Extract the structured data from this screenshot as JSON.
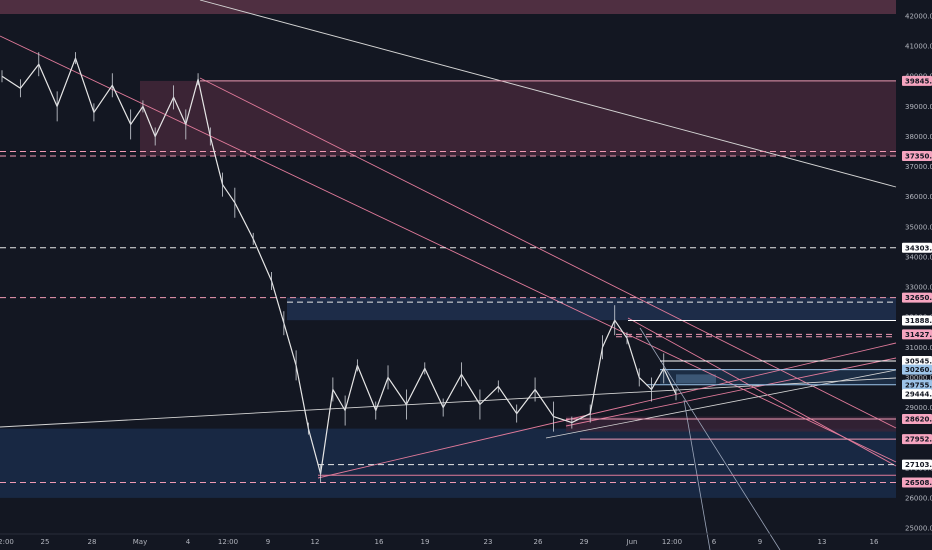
{
  "chart_data": {
    "type": "candlestick",
    "title": "",
    "xlabel": "",
    "ylabel": "",
    "ylim": [
      24800,
      42300
    ],
    "x_tick_labels": [
      "2:00",
      "25",
      "28",
      "May",
      "4",
      "12:00",
      "9",
      "12",
      "16",
      "19",
      "23",
      "26",
      "29",
      "Jun",
      "12:00",
      "6",
      "9",
      "13",
      "16"
    ],
    "y_tick_labels": [
      "25000.0",
      "26000.0",
      "27000.0",
      "28000.0",
      "29000.0",
      "30000.0",
      "31000.0",
      "32000.0",
      "33000.0",
      "34000.0",
      "35000.0",
      "36000.0",
      "37000.0",
      "38000.0",
      "39000.0",
      "40000.0",
      "41000.0",
      "42000.0"
    ],
    "price_tags": [
      {
        "label": "39845.0",
        "value": 39845,
        "color": "#f6a5c0"
      },
      {
        "label": "37350.0",
        "value": 37350,
        "color": "#f6a5c0"
      },
      {
        "label": "34303.7",
        "value": 34303.7,
        "color": "#ffffff"
      },
      {
        "label": "32650.0",
        "value": 32650,
        "color": "#f6a5c0"
      },
      {
        "label": "31888.0",
        "value": 31888,
        "color": "#ffffff"
      },
      {
        "label": "31427.5",
        "value": 31427.5,
        "color": "#f6a5c0"
      },
      {
        "label": "30545.1",
        "value": 30545.1,
        "color": "#ffffff"
      },
      {
        "label": "30260.0",
        "value": 30260,
        "color": "#9cc3e8"
      },
      {
        "label": "29755.0",
        "value": 29755,
        "color": "#9cc3e8"
      },
      {
        "label": "29444.2",
        "value": 29444.2,
        "color": "#ffffff"
      },
      {
        "label": "28620.0",
        "value": 28620,
        "color": "#f6a5c0"
      },
      {
        "label": "27952.1",
        "value": 27952.1,
        "color": "#f6a5c0"
      },
      {
        "label": "27103.1",
        "value": 27103.1,
        "color": "#ffffff"
      },
      {
        "label": "26508.9",
        "value": 26508.9,
        "color": "#f6a5c0"
      }
    ],
    "price_series": [
      {
        "t": 0,
        "v": 40000
      },
      {
        "t": 3,
        "v": 39600
      },
      {
        "t": 6,
        "v": 40400
      },
      {
        "t": 9,
        "v": 39000
      },
      {
        "t": 12,
        "v": 40600
      },
      {
        "t": 15,
        "v": 38800
      },
      {
        "t": 18,
        "v": 39700
      },
      {
        "t": 21,
        "v": 38400
      },
      {
        "t": 23,
        "v": 39000
      },
      {
        "t": 25,
        "v": 38000
      },
      {
        "t": 28,
        "v": 39300
      },
      {
        "t": 30,
        "v": 38400
      },
      {
        "t": 32,
        "v": 39900
      },
      {
        "t": 34,
        "v": 38000
      },
      {
        "t": 36,
        "v": 36400
      },
      {
        "t": 38,
        "v": 35800
      },
      {
        "t": 41,
        "v": 34600
      },
      {
        "t": 44,
        "v": 33200
      },
      {
        "t": 46,
        "v": 31800
      },
      {
        "t": 48,
        "v": 30400
      },
      {
        "t": 50,
        "v": 28300
      },
      {
        "t": 52,
        "v": 26800
      },
      {
        "t": 54,
        "v": 29600
      },
      {
        "t": 56,
        "v": 28900
      },
      {
        "t": 58,
        "v": 30400
      },
      {
        "t": 61,
        "v": 28900
      },
      {
        "t": 63,
        "v": 30000
      },
      {
        "t": 66,
        "v": 29100
      },
      {
        "t": 69,
        "v": 30300
      },
      {
        "t": 72,
        "v": 29000
      },
      {
        "t": 75,
        "v": 30100
      },
      {
        "t": 78,
        "v": 29100
      },
      {
        "t": 81,
        "v": 29700
      },
      {
        "t": 84,
        "v": 28800
      },
      {
        "t": 87,
        "v": 29600
      },
      {
        "t": 90,
        "v": 28700
      },
      {
        "t": 93,
        "v": 28500
      },
      {
        "t": 96,
        "v": 28800
      },
      {
        "t": 98,
        "v": 31000
      },
      {
        "t": 100,
        "v": 31900
      },
      {
        "t": 102,
        "v": 31300
      },
      {
        "t": 104,
        "v": 30000
      },
      {
        "t": 106,
        "v": 29600
      },
      {
        "t": 108,
        "v": 30300
      },
      {
        "t": 110,
        "v": 29440
      }
    ],
    "grid": false
  }
}
